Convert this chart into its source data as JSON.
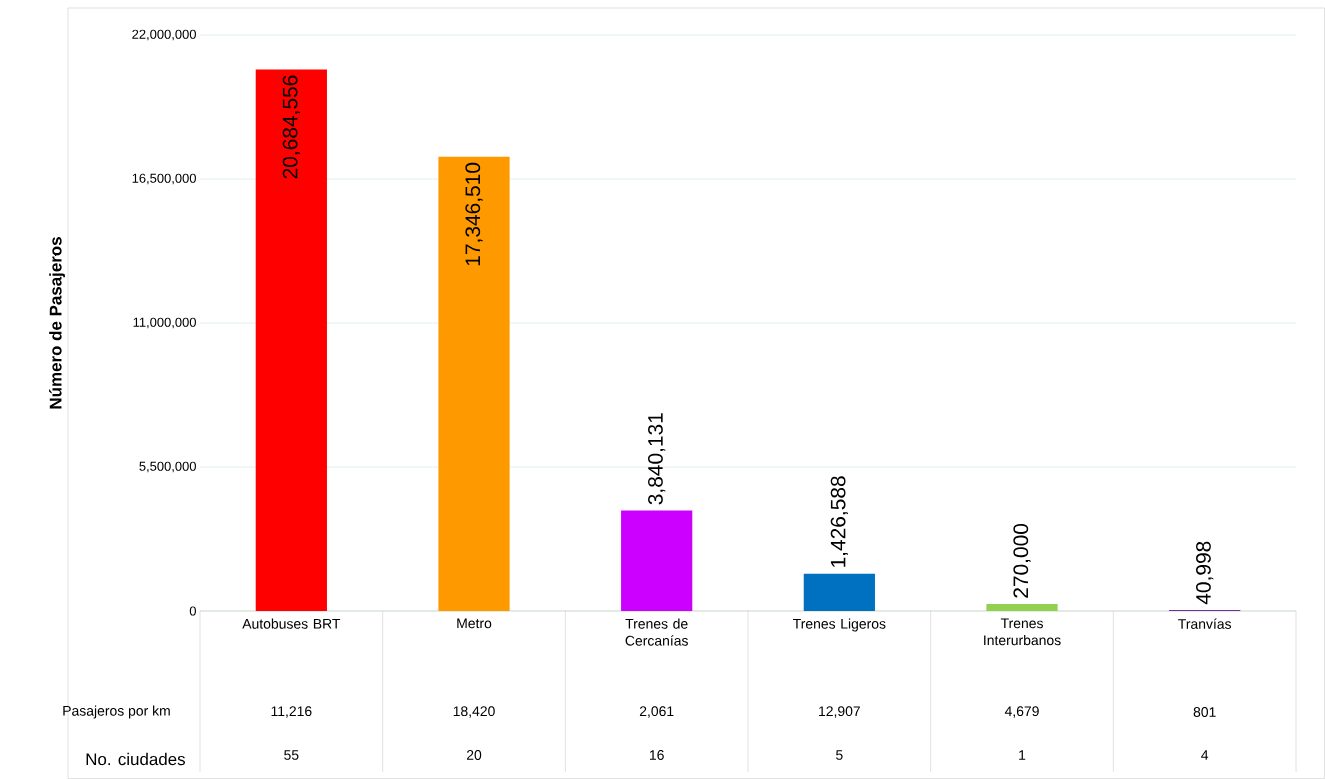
{
  "chart_data": {
    "type": "bar",
    "ylabel": "Número de Pasajeros",
    "categories": [
      "Autobuses BRT",
      "Metro",
      "Trenes de Cercanías",
      "Trenes Ligeros",
      "Trenes Interurbanos",
      "Tranvías"
    ],
    "values": [
      20684556,
      17346510,
      3840131,
      1426588,
      270000,
      40998
    ],
    "colors": [
      "#ff0000",
      "#ff9900",
      "#cc00ff",
      "#0070c0",
      "#92d050",
      "#7030a0"
    ],
    "value_labels": [
      "20,684,556",
      "17,346,510",
      "3,840,131",
      "1,426,588",
      "270,000",
      "40,998"
    ],
    "ylim": [
      0,
      22000000
    ],
    "yticks": [
      0,
      {
        "value": 5500000,
        "label": "5,500,000"
      },
      {
        "value": 11000000,
        "label": "11,000,000"
      },
      {
        "value": 16500000,
        "label": "16,500,000"
      },
      {
        "value": 22000000,
        "label": "22,000,000"
      }
    ],
    "grid": "y",
    "annotations": [
      "Pasajeros por km",
      "11,216",
      "18,420",
      "2,061",
      "12,907",
      "4,679",
      "801",
      "No. ciudades",
      "55",
      "20",
      "16",
      "5",
      "1",
      "4"
    ]
  }
}
